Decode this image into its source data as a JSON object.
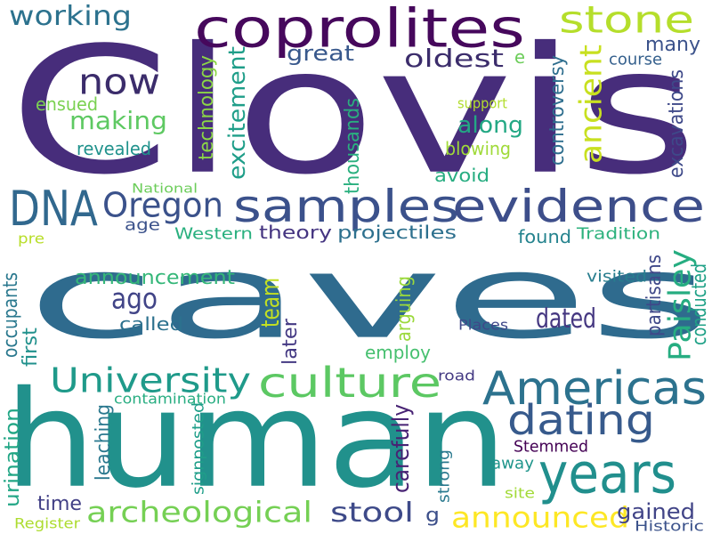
{
  "words": [
    {
      "text": "Clovis",
      "color": "#472d7b"
    },
    {
      "text": "caves",
      "color": "#2f6b8e"
    },
    {
      "text": "human",
      "color": "#21918c"
    },
    {
      "text": "coprolites",
      "color": "#46085c"
    },
    {
      "text": "stone",
      "color": "#b5de2b"
    },
    {
      "text": "now",
      "color": "#3b2c6b"
    },
    {
      "text": "working",
      "color": "#2c728e"
    },
    {
      "text": "making",
      "color": "#5ec962"
    },
    {
      "text": "oldest",
      "color": "#3b2c6b"
    },
    {
      "text": "great",
      "color": "#38588c"
    },
    {
      "text": "many",
      "color": "#3b528b"
    },
    {
      "text": "e",
      "color": "#6ccd5a"
    },
    {
      "text": "course",
      "color": "#35608d"
    },
    {
      "text": "ancient",
      "color": "#c8e020"
    },
    {
      "text": "along",
      "color": "#23a884"
    },
    {
      "text": "blowing",
      "color": "#a0da39"
    },
    {
      "text": "avoid",
      "color": "#27ad81"
    },
    {
      "text": "support",
      "color": "#b2dd2d"
    },
    {
      "text": "ensued",
      "color": "#7ad151"
    },
    {
      "text": "revealed",
      "color": "#20928c"
    },
    {
      "text": "excitement",
      "color": "#1f9e89"
    },
    {
      "text": "technology",
      "color": "#8bd646"
    },
    {
      "text": "thousands",
      "color": "#2ab07f"
    },
    {
      "text": "controversy",
      "color": "#2e6e8e"
    },
    {
      "text": "excavations",
      "color": "#3e4989"
    },
    {
      "text": "DNA",
      "color": "#31688e"
    },
    {
      "text": "Oregon",
      "color": "#3b528b"
    },
    {
      "text": "samples",
      "color": "#3b518b"
    },
    {
      "text": "evidence",
      "color": "#3d4e8a"
    },
    {
      "text": "National",
      "color": "#6ccd5a"
    },
    {
      "text": "age",
      "color": "#3b528b"
    },
    {
      "text": "pre",
      "color": "#b8de29"
    },
    {
      "text": "Western",
      "color": "#2ab07f"
    },
    {
      "text": "theory",
      "color": "#453581"
    },
    {
      "text": "projectiles",
      "color": "#2d708e"
    },
    {
      "text": "found",
      "color": "#25838e"
    },
    {
      "text": "Tradition",
      "color": "#2db27d"
    },
    {
      "text": "team",
      "color": "#c2df23"
    },
    {
      "text": "announcement",
      "color": "#35b779"
    },
    {
      "text": "ago",
      "color": "#414487"
    },
    {
      "text": "dated",
      "color": "#453781"
    },
    {
      "text": "Paisley",
      "color": "#26ad81"
    },
    {
      "text": "visited",
      "color": "#287d8e"
    },
    {
      "text": "partisans",
      "color": "#3f4889"
    },
    {
      "text": "conducted",
      "color": "#1fa187"
    },
    {
      "text": "occupants",
      "color": "#2a788e"
    },
    {
      "text": "first",
      "color": "#21918c"
    },
    {
      "text": "called",
      "color": "#2c718e"
    },
    {
      "text": "Places",
      "color": "#3f4889"
    },
    {
      "text": "employ",
      "color": "#46c06f"
    },
    {
      "text": "arguing",
      "color": "#9bd93c"
    },
    {
      "text": "later",
      "color": "#443983"
    },
    {
      "text": "University",
      "color": "#1f9a8a"
    },
    {
      "text": "culture",
      "color": "#5cc863"
    },
    {
      "text": "Americas",
      "color": "#2c728e"
    },
    {
      "text": "dating",
      "color": "#375a8c"
    },
    {
      "text": "years",
      "color": "#218f8d"
    },
    {
      "text": "road",
      "color": "#443a83"
    },
    {
      "text": "contamination",
      "color": "#27ad81"
    },
    {
      "text": "carefully",
      "color": "#482374"
    },
    {
      "text": "Stemmed",
      "color": "#440154"
    },
    {
      "text": "urination",
      "color": "#21a685"
    },
    {
      "text": "leaching",
      "color": "#2a788e"
    },
    {
      "text": "signposted",
      "color": "#1f9e89"
    },
    {
      "text": "strong",
      "color": "#29798e"
    },
    {
      "text": "away",
      "color": "#1f958b"
    },
    {
      "text": "site",
      "color": "#a2da37"
    },
    {
      "text": "time",
      "color": "#424086"
    },
    {
      "text": "archeological",
      "color": "#75d054"
    },
    {
      "text": "stool",
      "color": "#3e4a89"
    },
    {
      "text": "g",
      "color": "#3c4f8a"
    },
    {
      "text": "announced",
      "color": "#fde725"
    },
    {
      "text": "gained",
      "color": "#414487"
    },
    {
      "text": "Register",
      "color": "#addc30"
    },
    {
      "text": "Historic",
      "color": "#3b528b"
    }
  ]
}
